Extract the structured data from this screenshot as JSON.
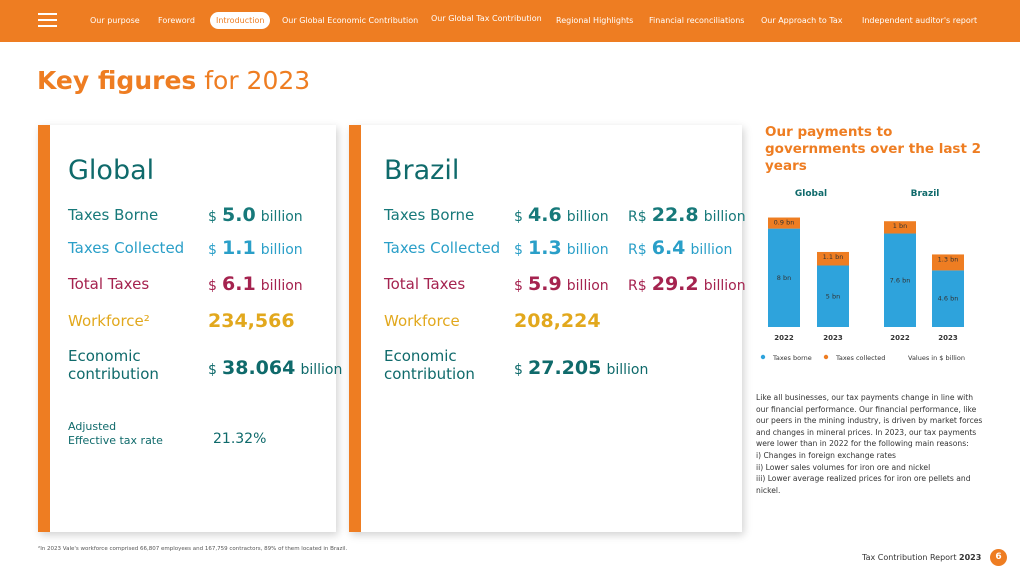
{
  "nav": {
    "items": [
      "Our purpose",
      "Foreword",
      "Introduction",
      "Our Global Economic Contribution",
      "Our Global Tax Contribution",
      "Regional Highlights",
      "Financial reconciliations",
      "Our Approach to Tax",
      "Independent auditor's report"
    ],
    "active": 2
  },
  "heading": {
    "bold": "Key figures",
    "rest": "for 2023"
  },
  "cards": [
    {
      "title": "Global",
      "rows": [
        {
          "label": "Taxes Borne",
          "color": "#17797a",
          "values": [
            {
              "currency": "$",
              "amount": "5.0",
              "unit": "billion"
            }
          ]
        },
        {
          "label": "Taxes Collected",
          "color": "#2a9fc8",
          "values": [
            {
              "currency": "$",
              "amount": "1.1",
              "unit": "billion"
            }
          ]
        },
        {
          "label": "Total Taxes",
          "color": "#a5234f",
          "values": [
            {
              "currency": "$",
              "amount": "6.1",
              "unit": "billion"
            }
          ]
        },
        {
          "label": "Workforce²",
          "color": "#e2a81d",
          "values": [
            {
              "amount": "234,566"
            }
          ]
        },
        {
          "label": [
            "Economic",
            "contribution"
          ],
          "color": "#0f6a6b",
          "values": [
            {
              "currency": "$",
              "amount": "38.064",
              "unit": "billion"
            }
          ]
        },
        {
          "label": [
            "Adjusted",
            "Effective tax rate"
          ],
          "color": "#0f6a6b",
          "small": true,
          "values": [
            {
              "amount": "21.32%"
            }
          ]
        }
      ]
    },
    {
      "title": "Brazil",
      "rows": [
        {
          "label": "Taxes Borne",
          "color": "#17797a",
          "values": [
            {
              "currency": "$",
              "amount": "4.6",
              "unit": "billion"
            },
            {
              "currency": "R$",
              "amount": "22.8",
              "unit": "billion"
            }
          ]
        },
        {
          "label": "Taxes Collected",
          "color": "#2a9fc8",
          "values": [
            {
              "currency": "$",
              "amount": "1.3",
              "unit": "billion"
            },
            {
              "currency": "R$",
              "amount": "6.4",
              "unit": "billion"
            }
          ]
        },
        {
          "label": "Total Taxes",
          "color": "#a5234f",
          "values": [
            {
              "currency": "$",
              "amount": "5.9",
              "unit": "billion"
            },
            {
              "currency": "R$",
              "amount": "29.2",
              "unit": "billion"
            }
          ]
        },
        {
          "label": "Workforce",
          "color": "#e2a81d",
          "values": [
            {
              "amount": "208,224"
            }
          ]
        },
        {
          "label": [
            "Economic",
            "contribution"
          ],
          "color": "#0f6a6b",
          "values": [
            {
              "currency": "$",
              "amount": "27.205",
              "unit": "billion"
            }
          ]
        }
      ]
    }
  ],
  "chart_data": {
    "type": "bar",
    "stacked": true,
    "title": "Our payments to governments over the last 2 years",
    "groups": [
      "Global",
      "Brazil"
    ],
    "categories": [
      "2022",
      "2023",
      "2022",
      "2023"
    ],
    "series": [
      {
        "name": "Taxes borne",
        "color": "#2ea3dc",
        "values": [
          8,
          5,
          7.6,
          4.6
        ],
        "value_labels": [
          "8 bn",
          "5 bn",
          "7.6 bn",
          "4.6 bn"
        ]
      },
      {
        "name": "Taxes collected",
        "color": "#ee7d22",
        "values": [
          0.9,
          1.1,
          1,
          1.3
        ],
        "value_labels": [
          "0.9 bn",
          "1.1 bn",
          "1 bn",
          "1.3 bn"
        ]
      }
    ],
    "note": "Values in $ billion"
  },
  "paragraph": {
    "body": "Like all businesses, our tax payments change in line with our financial performance. Our financial performance, like our peers in the mining industry, is driven by market forces and changes in mineral prices. In 2023, our tax payments were lower than in 2022 for the following main reasons:",
    "reasons": [
      "i) Changes in foreign exchange rates",
      "ii) Lower sales volumes for iron ore and nickel",
      "iii) Lower average realized prices for iron ore pellets and nickel."
    ]
  },
  "footnote": "²In 2023 Vale's workforce comprised 66,807 employees and 167,759 contractors, 89% of them located in Brazil.",
  "footer": {
    "text": "Tax Contribution Report",
    "year": "2023",
    "page": "6"
  }
}
